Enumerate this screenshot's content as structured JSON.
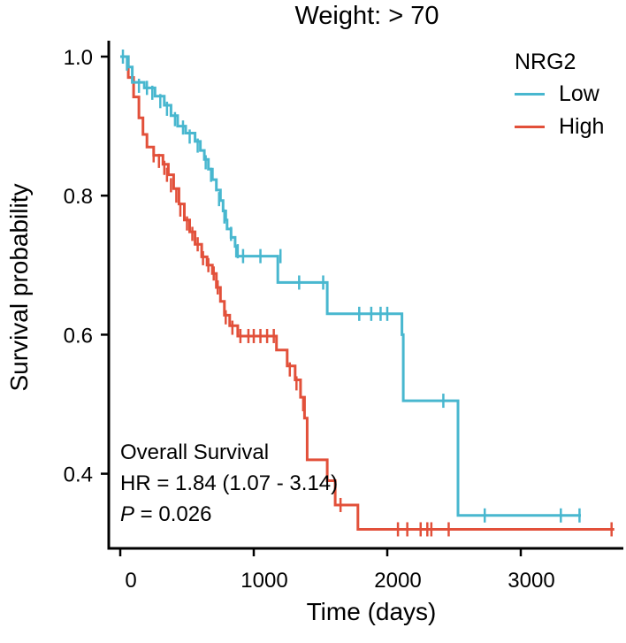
{
  "chart_data": {
    "type": "line",
    "subtype": "kaplan-meier",
    "title": "Weight: > 70",
    "xlabel": "Time (days)",
    "ylabel": "Survival probability",
    "xlim": [
      -50,
      3700
    ],
    "ylim": [
      0.3,
      1.0
    ],
    "xticks": [
      0,
      1000,
      2000,
      3000
    ],
    "xtick_labels": [
      "0",
      "1000",
      "2000",
      "3000"
    ],
    "yticks": [
      0.4,
      0.6,
      0.8,
      1.0
    ],
    "ytick_labels": [
      "0.4",
      "0.6",
      "0.8",
      "1.0"
    ],
    "grid": false,
    "legend": {
      "title": "NRG2",
      "position": "top-right"
    },
    "series": [
      {
        "name": "Low",
        "color": "#48B7CF",
        "steps": [
          [
            0,
            1.0
          ],
          [
            60,
            0.985
          ],
          [
            90,
            0.963
          ],
          [
            180,
            0.955
          ],
          [
            260,
            0.943
          ],
          [
            330,
            0.93
          ],
          [
            380,
            0.915
          ],
          [
            430,
            0.9
          ],
          [
            490,
            0.89
          ],
          [
            560,
            0.878
          ],
          [
            600,
            0.865
          ],
          [
            630,
            0.852
          ],
          [
            660,
            0.838
          ],
          [
            690,
            0.823
          ],
          [
            720,
            0.808
          ],
          [
            750,
            0.793
          ],
          [
            770,
            0.778
          ],
          [
            790,
            0.765
          ],
          [
            800,
            0.752
          ],
          [
            830,
            0.74
          ],
          [
            860,
            0.727
          ],
          [
            870,
            0.713
          ],
          [
            1180,
            0.675
          ],
          [
            1550,
            0.63
          ],
          [
            2110,
            0.6
          ],
          [
            2120,
            0.505
          ],
          [
            2530,
            0.34
          ],
          [
            3450,
            0.34
          ]
        ],
        "censor": [
          [
            20,
            1.0
          ],
          [
            50,
            0.99
          ],
          [
            140,
            0.958
          ],
          [
            200,
            0.955
          ],
          [
            240,
            0.948
          ],
          [
            300,
            0.936
          ],
          [
            350,
            0.925
          ],
          [
            410,
            0.91
          ],
          [
            470,
            0.898
          ],
          [
            520,
            0.885
          ],
          [
            580,
            0.872
          ],
          [
            640,
            0.848
          ],
          [
            680,
            0.83
          ],
          [
            740,
            0.795
          ],
          [
            780,
            0.77
          ],
          [
            830,
            0.745
          ],
          [
            880,
            0.72
          ],
          [
            920,
            0.713
          ],
          [
            1050,
            0.713
          ],
          [
            1200,
            0.713
          ],
          [
            1340,
            0.675
          ],
          [
            1520,
            0.675
          ],
          [
            1790,
            0.63
          ],
          [
            1880,
            0.63
          ],
          [
            1950,
            0.63
          ],
          [
            2000,
            0.63
          ],
          [
            2420,
            0.505
          ],
          [
            2730,
            0.34
          ],
          [
            3300,
            0.34
          ],
          [
            3440,
            0.34
          ]
        ]
      },
      {
        "name": "High",
        "color": "#E2503A",
        "steps": [
          [
            0,
            1.0
          ],
          [
            60,
            0.97
          ],
          [
            100,
            0.942
          ],
          [
            140,
            0.912
          ],
          [
            170,
            0.888
          ],
          [
            200,
            0.87
          ],
          [
            250,
            0.858
          ],
          [
            320,
            0.845
          ],
          [
            360,
            0.83
          ],
          [
            400,
            0.81
          ],
          [
            440,
            0.788
          ],
          [
            480,
            0.765
          ],
          [
            520,
            0.748
          ],
          [
            560,
            0.73
          ],
          [
            610,
            0.712
          ],
          [
            650,
            0.7
          ],
          [
            690,
            0.688
          ],
          [
            720,
            0.668
          ],
          [
            750,
            0.648
          ],
          [
            780,
            0.628
          ],
          [
            820,
            0.613
          ],
          [
            880,
            0.598
          ],
          [
            1170,
            0.578
          ],
          [
            1250,
            0.555
          ],
          [
            1310,
            0.535
          ],
          [
            1350,
            0.51
          ],
          [
            1380,
            0.48
          ],
          [
            1400,
            0.42
          ],
          [
            1550,
            0.39
          ],
          [
            1610,
            0.355
          ],
          [
            1780,
            0.32
          ],
          [
            3700,
            0.32
          ]
        ],
        "censor": [
          [
            250,
            0.858
          ],
          [
            290,
            0.85
          ],
          [
            330,
            0.84
          ],
          [
            350,
            0.83
          ],
          [
            380,
            0.815
          ],
          [
            420,
            0.8
          ],
          [
            450,
            0.78
          ],
          [
            500,
            0.76
          ],
          [
            540,
            0.745
          ],
          [
            580,
            0.73
          ],
          [
            620,
            0.71
          ],
          [
            660,
            0.7
          ],
          [
            700,
            0.688
          ],
          [
            730,
            0.668
          ],
          [
            790,
            0.625
          ],
          [
            840,
            0.61
          ],
          [
            900,
            0.598
          ],
          [
            960,
            0.598
          ],
          [
            1000,
            0.598
          ],
          [
            1050,
            0.598
          ],
          [
            1100,
            0.598
          ],
          [
            1150,
            0.598
          ],
          [
            1270,
            0.55
          ],
          [
            1320,
            0.53
          ],
          [
            1370,
            0.5
          ],
          [
            1650,
            0.355
          ],
          [
            2080,
            0.32
          ],
          [
            2150,
            0.32
          ],
          [
            2250,
            0.32
          ],
          [
            2300,
            0.32
          ],
          [
            2330,
            0.32
          ],
          [
            2460,
            0.32
          ],
          [
            3680,
            0.32
          ]
        ]
      }
    ],
    "annotations": {
      "line1": "Overall Survival",
      "line2": "HR = 1.84 (1.07 - 3.14)",
      "p_symbol": "P",
      "p_value": " = 0.026"
    }
  }
}
